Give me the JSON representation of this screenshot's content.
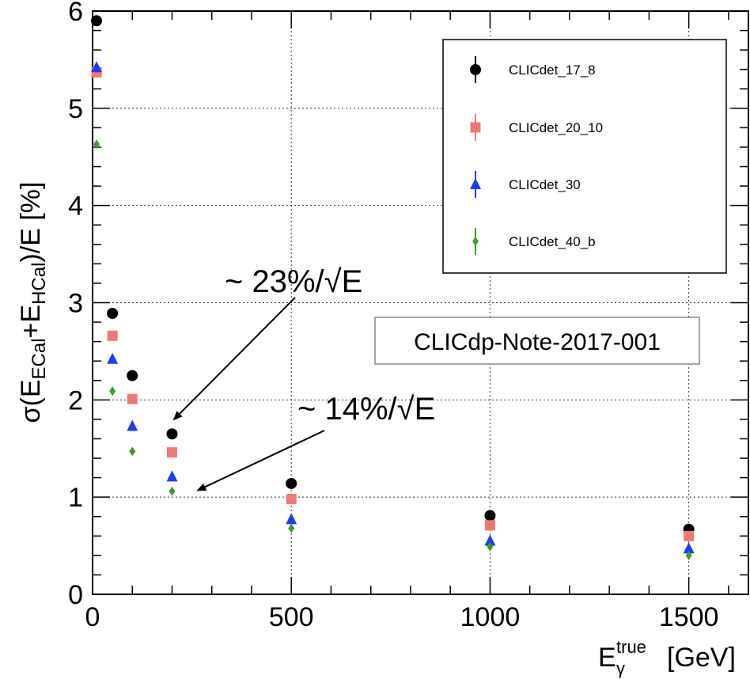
{
  "chart_data": {
    "type": "scatter",
    "xlabel_main": "E",
    "xlabel_sub": "γ",
    "xlabel_sup": "true",
    "xlabel_unit": "[GeV]",
    "ylabel_parts": [
      "σ(E",
      "ECal",
      "+E",
      "HCal",
      ")/E [%]"
    ],
    "xlim": [
      0,
      1650
    ],
    "ylim": [
      0,
      6
    ],
    "x_ticks": [
      0,
      500,
      1000,
      1500
    ],
    "y_ticks": [
      0,
      1,
      2,
      3,
      4,
      5,
      6
    ],
    "x_tick_labels": [
      "0",
      "500",
      "1000",
      "1500"
    ],
    "y_tick_labels": [
      "0",
      "1",
      "2",
      "3",
      "4",
      "5",
      "6"
    ],
    "grid": true,
    "legend_position": "top-right",
    "series": [
      {
        "name": "CLICdet_17_8",
        "marker": "circle",
        "color": "#000000",
        "x": [
          10,
          50,
          100,
          200,
          500,
          1000,
          1500
        ],
        "y": [
          5.9,
          2.89,
          2.25,
          1.65,
          1.14,
          0.81,
          0.67
        ]
      },
      {
        "name": "CLICdet_20_10",
        "marker": "square",
        "color": "#f07874",
        "x": [
          10,
          50,
          100,
          200,
          500,
          1000,
          1500
        ],
        "y": [
          5.37,
          2.66,
          2.01,
          1.46,
          0.98,
          0.71,
          0.6
        ]
      },
      {
        "name": "CLICdet_30",
        "marker": "triangle",
        "color": "#1f3cf0",
        "x": [
          10,
          50,
          100,
          200,
          500,
          1000,
          1500
        ],
        "y": [
          5.42,
          2.42,
          1.73,
          1.21,
          0.77,
          0.55,
          0.47
        ]
      },
      {
        "name": "CLICdet_40_b",
        "marker": "diamond",
        "color": "#3f9b2f",
        "x": [
          10,
          50,
          100,
          200,
          500,
          1000,
          1500
        ],
        "y": [
          4.63,
          2.09,
          1.47,
          1.06,
          0.68,
          0.49,
          0.4
        ]
      }
    ],
    "annotations": [
      {
        "text": "~ 23%/√E",
        "points_to": [
          205,
          1.8
        ]
      },
      {
        "text": "~ 14%/√E",
        "points_to": [
          265,
          1.07
        ]
      }
    ],
    "note_box": "CLICdp-Note-2017-001"
  }
}
